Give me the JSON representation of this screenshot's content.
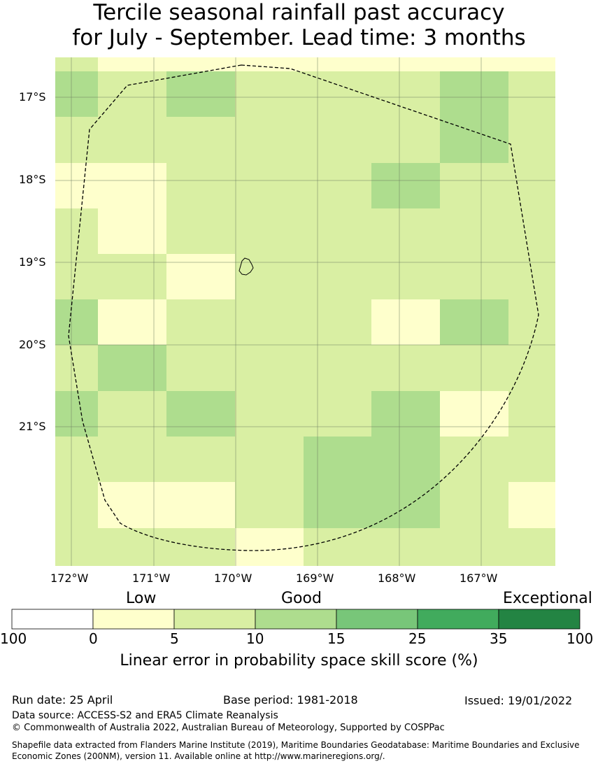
{
  "title": {
    "line1": "Tercile seasonal rainfall past accuracy",
    "line2": "for July - September. Lead time: 3 months"
  },
  "map": {
    "lat_labels": [
      "17°S",
      "18°S",
      "19°S",
      "20°S",
      "21°S"
    ],
    "lon_labels": [
      "172°W",
      "171°W",
      "170°W",
      "169°W",
      "168°W",
      "167°W"
    ],
    "palette": [
      "#ffffff",
      "#feffcc",
      "#d9efa3",
      "#aedd8e",
      "#78c679",
      "#41ab5d",
      "#238443"
    ],
    "grid_classes": [
      [
        2,
        1,
        1,
        1,
        1,
        1,
        1,
        1,
        1,
        1,
        1
      ],
      [
        3,
        2,
        3,
        2,
        2,
        2,
        2,
        2,
        3,
        3,
        2
      ],
      [
        2,
        2,
        2,
        2,
        2,
        2,
        2,
        3,
        3,
        3,
        2
      ],
      [
        1,
        1,
        2,
        2,
        2,
        3,
        2,
        2,
        2,
        2,
        2
      ],
      [
        2,
        1,
        2,
        2,
        2,
        2,
        2,
        2,
        2,
        2,
        2
      ],
      [
        2,
        2,
        1,
        2,
        2,
        2,
        2,
        2,
        2,
        2,
        2
      ],
      [
        3,
        1,
        2,
        2,
        2,
        1,
        1,
        1,
        3,
        2,
        2
      ],
      [
        2,
        3,
        2,
        2,
        2,
        2,
        2,
        1,
        2,
        2,
        2
      ],
      [
        3,
        2,
        3,
        2,
        2,
        3,
        3,
        2,
        1,
        1,
        2
      ],
      [
        2,
        2,
        2,
        2,
        3,
        3,
        3,
        2,
        2,
        2,
        2
      ],
      [
        2,
        1,
        1,
        2,
        3,
        3,
        3,
        2,
        2,
        2,
        1
      ],
      [
        2,
        2,
        2,
        1,
        2,
        2,
        2,
        2,
        2,
        2,
        2
      ]
    ]
  },
  "legend": {
    "category_labels": [
      "Low",
      "Good",
      "Exceptional"
    ],
    "tick_labels": [
      "100",
      "0",
      "5",
      "10",
      "15",
      "25",
      "35",
      "100"
    ],
    "title": "Linear error in probability space skill score (%)"
  },
  "footer": {
    "run_date": "Run date: 25 April",
    "base_period": "Base period: 1981-2018",
    "issued": "Issued: 19/01/2022",
    "data_source": "Data source: ACCESS-S2 and ERA5 Climate Reanalysis",
    "copyright": "© Commonwealth of Australia 2022, Australian Bureau of Meteorology, Supported by COSPPac",
    "shapefile": "Shapefile data extracted from Flanders Marine Institute (2019), Maritime Boundaries Geodatabase: Maritime Boundaries and Exclusive Economic Zones (200NM), version 11. Available online at http://www.marineregions.org/."
  }
}
